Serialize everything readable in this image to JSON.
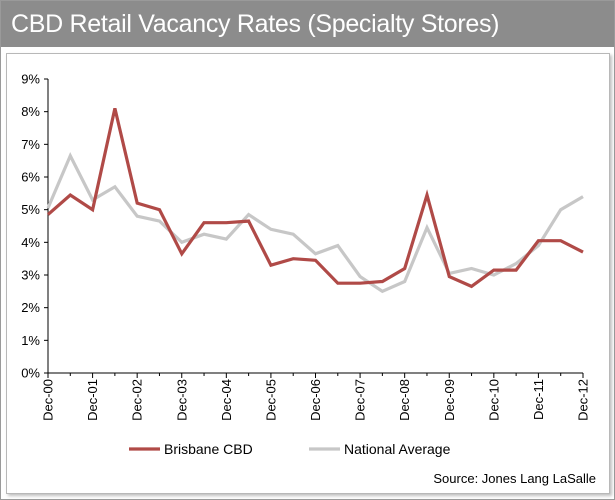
{
  "title": "CBD Retail Vacancy Rates (Specialty Stores)",
  "source": "Source: Jones Lang LaSalle",
  "colors": {
    "title_bg": "#8c8c8c",
    "brisbane": "#b04a47",
    "national": "#c7c7c7"
  },
  "chart_data": {
    "type": "line",
    "title": "CBD Retail Vacancy Rates (Specialty Stores)",
    "x_tick_labels": [
      "Dec-00",
      "Dec-01",
      "Dec-02",
      "Dec-03",
      "Dec-04",
      "Dec-05",
      "Dec-06",
      "Dec-07",
      "Dec-08",
      "Dec-09",
      "Dec-10",
      "Dec-11",
      "Dec-12"
    ],
    "y_tick_labels": [
      "0%",
      "1%",
      "2%",
      "3%",
      "4%",
      "5%",
      "6%",
      "7%",
      "8%",
      "9%"
    ],
    "ylim": [
      0,
      9
    ],
    "x_range": [
      0,
      24
    ],
    "grid": false,
    "legend_position": "bottom",
    "series": [
      {
        "name": "Brisbane CBD",
        "color": "#b04a47",
        "x": [
          0,
          1,
          2,
          3,
          4,
          5,
          6,
          7,
          8,
          9,
          10,
          11,
          12,
          13,
          14,
          15,
          16,
          17,
          18,
          19,
          20,
          21,
          22,
          23,
          24
        ],
        "values": [
          4.85,
          5.45,
          5.0,
          8.1,
          5.2,
          5.0,
          3.65,
          4.6,
          4.6,
          4.65,
          3.3,
          3.5,
          3.45,
          2.75,
          2.75,
          2.8,
          3.2,
          5.45,
          2.95,
          2.65,
          3.15,
          3.15,
          4.05,
          4.05,
          3.7
        ]
      },
      {
        "name": "National Average",
        "color": "#c7c7c7",
        "x": [
          0,
          1,
          2,
          3,
          4,
          5,
          6,
          7,
          8,
          9,
          10,
          11,
          12,
          13,
          14,
          15,
          16,
          17,
          18,
          19,
          20,
          21,
          22,
          23,
          24
        ],
        "values": [
          5.05,
          6.65,
          5.3,
          5.7,
          4.8,
          4.65,
          4.0,
          4.25,
          4.1,
          4.85,
          4.4,
          4.25,
          3.65,
          3.9,
          2.95,
          2.5,
          2.8,
          4.45,
          3.05,
          3.2,
          3.0,
          3.35,
          3.9,
          5.0,
          5.4
        ]
      }
    ],
    "source": "Source: Jones Lang LaSalle"
  }
}
